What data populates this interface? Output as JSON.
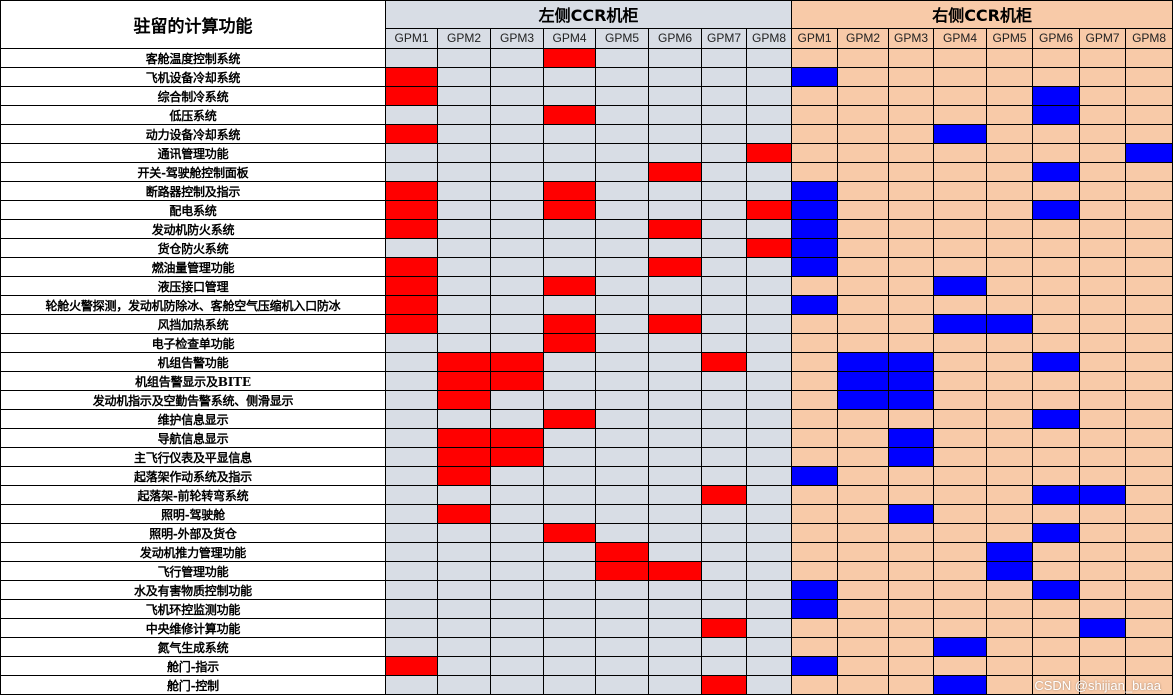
{
  "header": {
    "corner_title": "驻留的计算功能",
    "left_group": "左侧CCR机柜",
    "right_group": "右侧CCR机柜",
    "gpm_labels": [
      "GPM1",
      "GPM2",
      "GPM3",
      "GPM4",
      "GPM5",
      "GPM6",
      "GPM7",
      "GPM8"
    ]
  },
  "colors": {
    "left_bg": "#d8dde5",
    "right_bg": "#f8caa8",
    "left_active": "#ff0000",
    "right_active": "#0000ff"
  },
  "rows": [
    {
      "label": "客舱温度控制系统",
      "left": [
        4
      ],
      "right": []
    },
    {
      "label": "飞机设备冷却系统",
      "left": [
        1
      ],
      "right": [
        1
      ]
    },
    {
      "label": "综合制冷系统",
      "left": [
        1
      ],
      "right": [
        6
      ]
    },
    {
      "label": "低压系统",
      "left": [
        4
      ],
      "right": [
        6
      ]
    },
    {
      "label": "动力设备冷却系统",
      "left": [
        1
      ],
      "right": [
        4
      ]
    },
    {
      "label": "通讯管理功能",
      "left": [
        8
      ],
      "right": [
        8
      ]
    },
    {
      "label": "开关-驾驶舱控制面板",
      "left": [
        6
      ],
      "right": [
        6
      ]
    },
    {
      "label": "断路器控制及指示",
      "left": [
        1,
        4
      ],
      "right": [
        1
      ]
    },
    {
      "label": "配电系统",
      "left": [
        1,
        4,
        8
      ],
      "right": [
        1,
        6
      ]
    },
    {
      "label": "发动机防火系统",
      "left": [
        1,
        6
      ],
      "right": [
        1
      ]
    },
    {
      "label": "货仓防火系统",
      "left": [
        8
      ],
      "right": [
        1
      ]
    },
    {
      "label": "燃油量管理功能",
      "left": [
        1,
        6
      ],
      "right": [
        1
      ]
    },
    {
      "label": "液压接口管理",
      "left": [
        1,
        4
      ],
      "right": [
        4
      ]
    },
    {
      "label": "轮舱火警探测，发动机防除冰、客舱空气压缩机入口防冰",
      "left": [
        1
      ],
      "right": [
        1
      ]
    },
    {
      "label": "风挡加热系统",
      "left": [
        1,
        4,
        6
      ],
      "right": [
        4,
        5
      ]
    },
    {
      "label": "电子检查单功能",
      "left": [
        4
      ],
      "right": []
    },
    {
      "label": "机组告警功能",
      "left": [
        2,
        3,
        7
      ],
      "right": [
        2,
        3,
        6
      ]
    },
    {
      "label": "机组告警显示及BITE",
      "left": [
        2,
        3
      ],
      "right": [
        2,
        3
      ]
    },
    {
      "label": "发动机指示及空勤告警系统、侧滑显示",
      "left": [
        2
      ],
      "right": [
        2,
        3
      ]
    },
    {
      "label": "维护信息显示",
      "left": [
        4
      ],
      "right": [
        6
      ]
    },
    {
      "label": "导航信息显示",
      "left": [
        2,
        3
      ],
      "right": [
        3
      ]
    },
    {
      "label": "主飞行仪表及平显信息",
      "left": [
        2,
        3
      ],
      "right": [
        3
      ]
    },
    {
      "label": "起落架作动系统及指示",
      "left": [
        2
      ],
      "right": [
        1
      ]
    },
    {
      "label": "起落架-前轮转弯系统",
      "left": [
        7
      ],
      "right": [
        6,
        7
      ]
    },
    {
      "label": "照明-驾驶舱",
      "left": [
        2
      ],
      "right": [
        3
      ]
    },
    {
      "label": "照明-外部及货仓",
      "left": [
        4
      ],
      "right": [
        6
      ]
    },
    {
      "label": "发动机推力管理功能",
      "left": [
        5
      ],
      "right": [
        5
      ]
    },
    {
      "label": "飞行管理功能",
      "left": [
        5,
        6
      ],
      "right": [
        5
      ]
    },
    {
      "label": "水及有害物质控制功能",
      "left": [],
      "right": [
        1,
        6
      ]
    },
    {
      "label": "飞机环控监测功能",
      "left": [],
      "right": [
        1
      ]
    },
    {
      "label": "中央维修计算功能",
      "left": [
        7
      ],
      "right": [
        7
      ]
    },
    {
      "label": "氮气生成系统",
      "left": [],
      "right": [
        4
      ]
    },
    {
      "label": "舱门-指示",
      "left": [
        1
      ],
      "right": [
        1
      ]
    },
    {
      "label": "舱门-控制",
      "left": [
        7
      ],
      "right": [
        4
      ]
    }
  ],
  "watermark": "CSDN @shijian_buaa"
}
